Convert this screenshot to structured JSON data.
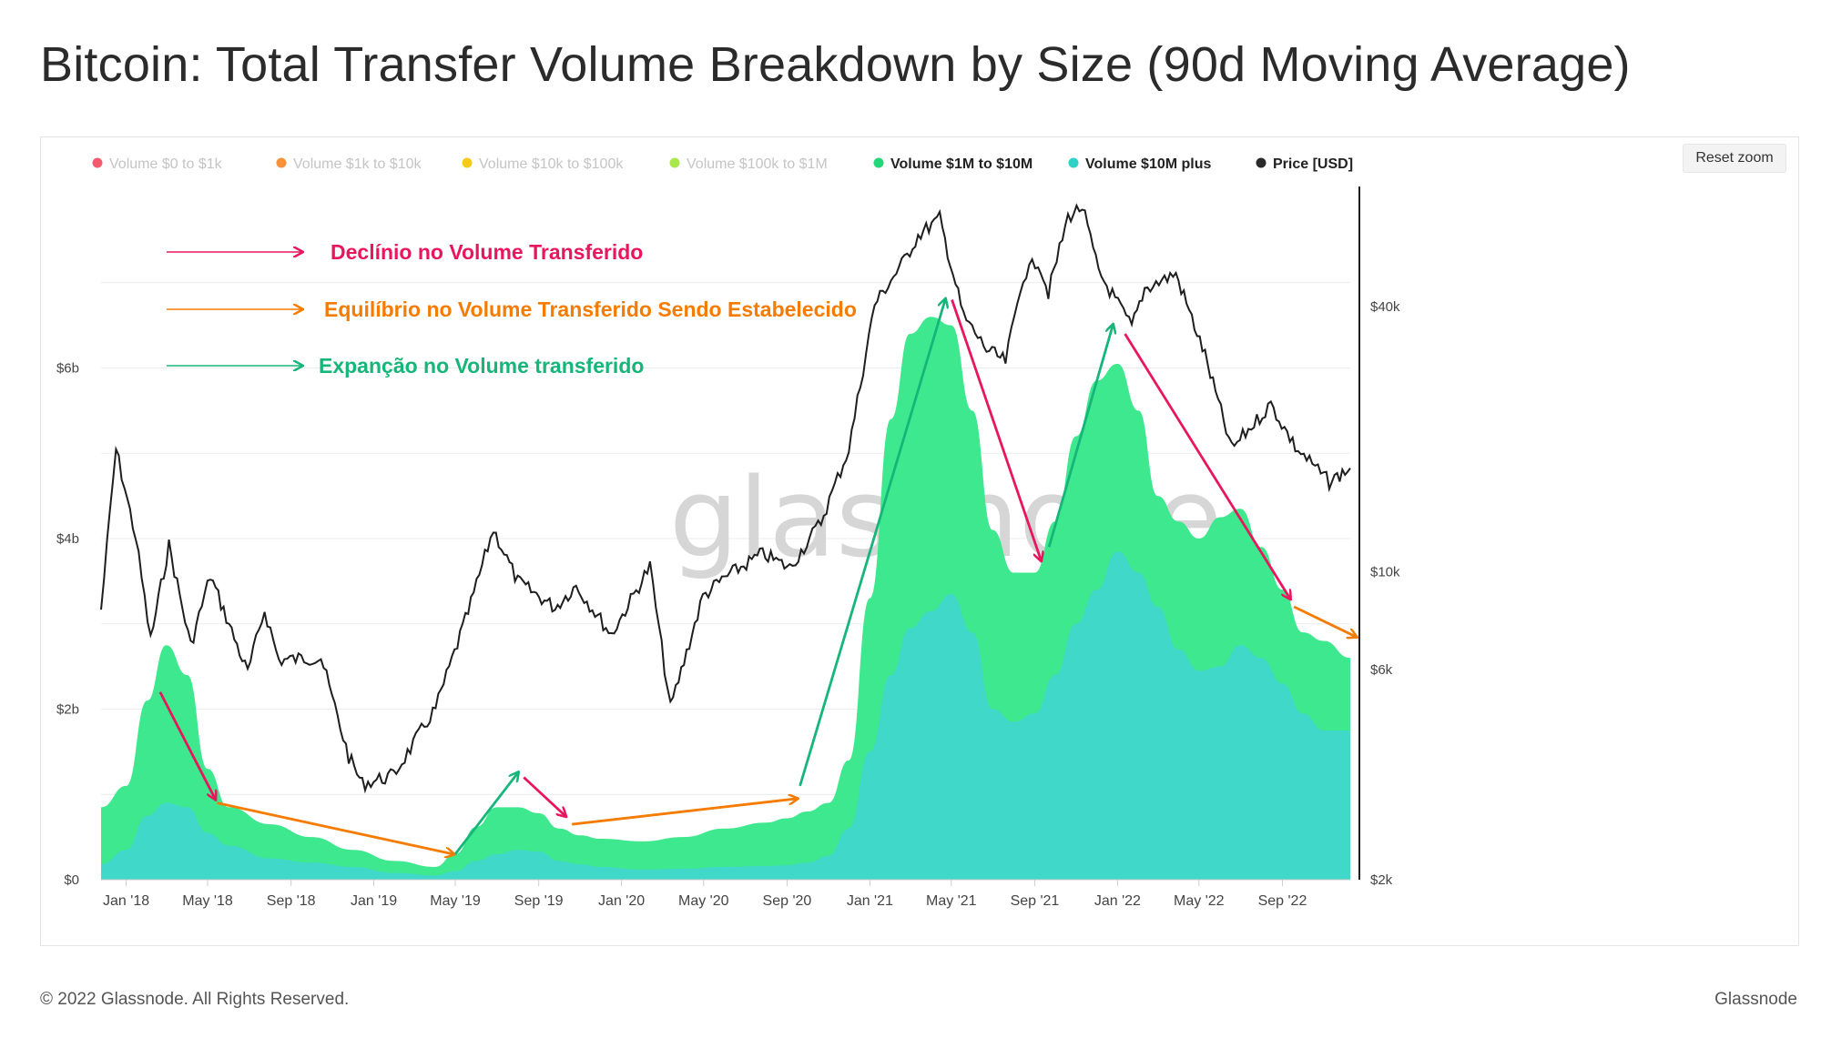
{
  "title": "Bitcoin: Total Transfer Volume Breakdown by Size (90d Moving Average)",
  "reset_zoom_label": "Reset zoom",
  "watermark": "glassnode",
  "footer": {
    "copyright": "© 2022 Glassnode. All Rights Reserved.",
    "brand": "Glassnode"
  },
  "legend": [
    {
      "label": "Volume $0 to $1k",
      "color": "#f35b6f",
      "active": false
    },
    {
      "label": "Volume $1k to $10k",
      "color": "#f7923a",
      "active": false
    },
    {
      "label": "Volume $10k to $100k",
      "color": "#f5cb17",
      "active": false
    },
    {
      "label": "Volume $100k to $1M",
      "color": "#a9e84a",
      "active": false
    },
    {
      "label": "Volume $1M to $10M",
      "color": "#22d67a",
      "active": true
    },
    {
      "label": "Volume $10M plus",
      "color": "#2fd0c5",
      "active": true
    },
    {
      "label": "Price [USD]",
      "color": "#2a2a2a",
      "active": true
    }
  ],
  "annotations": [
    {
      "text": "Declínio no Volume Transferido",
      "color": "#e8175d"
    },
    {
      "text": "Equilíbrio no Volume Transferido Sendo Estabelecido",
      "color": "#f57c00"
    },
    {
      "text": "Expanção no Volume transferido",
      "color": "#16b57a"
    }
  ],
  "colors": {
    "decline": "#e8175d",
    "equilibrium": "#f57c00",
    "expansion": "#16b57a",
    "area_1m_10m": "#3ee88e",
    "area_10m_plus": "#40d8c8",
    "price_line": "#1e1e1e",
    "grid": "#ececec"
  },
  "chart_data": {
    "type": "area",
    "x_ticks": [
      "Jan '18",
      "May '18",
      "Sep '18",
      "Jan '19",
      "May '19",
      "Sep '19",
      "Jan '20",
      "May '20",
      "Sep '20",
      "Jan '21",
      "May '21",
      "Sep '21",
      "Jan '22",
      "May '22",
      "Sep '22"
    ],
    "y_left_ticks": [
      "$0",
      "$2b",
      "$4b",
      "$6b"
    ],
    "y_left_range": [
      0,
      8
    ],
    "y_right_ticks": [
      "$2k",
      "$6k",
      "$10k",
      "$40k"
    ],
    "y_right_values": [
      2000,
      6000,
      10000,
      40000
    ],
    "y_right_scale": "log",
    "x_range": [
      "2017-11-25",
      "2022-12-10"
    ],
    "legend_position": "top",
    "series": [
      {
        "name": "Volume $10M plus",
        "axis": "left",
        "unit": "billions USD",
        "x": [
          "2017-11-25",
          "2018-01-01",
          "2018-02-01",
          "2018-03-01",
          "2018-04-01",
          "2018-05-01",
          "2018-06-01",
          "2018-08-01",
          "2018-10-01",
          "2018-12-01",
          "2019-02-01",
          "2019-04-01",
          "2019-05-01",
          "2019-06-01",
          "2019-07-01",
          "2019-08-01",
          "2019-09-01",
          "2019-10-01",
          "2019-11-01",
          "2019-12-01",
          "2020-02-01",
          "2020-04-01",
          "2020-06-01",
          "2020-08-01",
          "2020-09-01",
          "2020-10-01",
          "2020-11-01",
          "2020-12-01",
          "2021-01-01",
          "2021-02-01",
          "2021-03-01",
          "2021-04-01",
          "2021-05-01",
          "2021-06-01",
          "2021-07-01",
          "2021-08-01",
          "2021-09-01",
          "2021-10-01",
          "2021-11-01",
          "2021-12-01",
          "2022-01-01",
          "2022-02-01",
          "2022-03-01",
          "2022-04-01",
          "2022-05-01",
          "2022-06-01",
          "2022-07-01",
          "2022-08-01",
          "2022-09-01",
          "2022-10-01",
          "2022-11-01",
          "2022-12-10"
        ],
        "values": [
          0.18,
          0.35,
          0.75,
          0.9,
          0.85,
          0.55,
          0.4,
          0.25,
          0.2,
          0.15,
          0.08,
          0.05,
          0.1,
          0.22,
          0.3,
          0.35,
          0.33,
          0.22,
          0.18,
          0.15,
          0.12,
          0.13,
          0.15,
          0.16,
          0.17,
          0.2,
          0.28,
          0.6,
          1.5,
          2.4,
          2.95,
          3.15,
          3.35,
          2.9,
          2.0,
          1.85,
          1.95,
          2.4,
          3.0,
          3.4,
          3.85,
          3.6,
          3.2,
          2.7,
          2.45,
          2.5,
          2.75,
          2.6,
          2.3,
          1.95,
          1.75,
          1.75
        ]
      },
      {
        "name": "Volume $1M to $10M",
        "axis": "left",
        "unit": "billions USD (stacked total shown)",
        "x": [
          "2017-11-25",
          "2018-01-01",
          "2018-02-01",
          "2018-03-01",
          "2018-04-01",
          "2018-05-01",
          "2018-06-01",
          "2018-08-01",
          "2018-10-01",
          "2018-12-01",
          "2019-02-01",
          "2019-04-01",
          "2019-05-01",
          "2019-06-01",
          "2019-07-01",
          "2019-08-01",
          "2019-09-01",
          "2019-10-01",
          "2019-11-01",
          "2019-12-01",
          "2020-02-01",
          "2020-04-01",
          "2020-06-01",
          "2020-08-01",
          "2020-09-01",
          "2020-10-01",
          "2020-11-01",
          "2020-12-01",
          "2021-01-01",
          "2021-02-01",
          "2021-03-01",
          "2021-04-01",
          "2021-05-01",
          "2021-06-01",
          "2021-07-01",
          "2021-08-01",
          "2021-09-01",
          "2021-10-01",
          "2021-11-01",
          "2021-12-01",
          "2022-01-01",
          "2022-02-01",
          "2022-03-01",
          "2022-04-01",
          "2022-05-01",
          "2022-06-01",
          "2022-07-01",
          "2022-08-01",
          "2022-09-01",
          "2022-10-01",
          "2022-11-01",
          "2022-12-10"
        ],
        "values": [
          0.85,
          1.1,
          2.1,
          2.75,
          2.4,
          1.3,
          0.85,
          0.65,
          0.5,
          0.35,
          0.22,
          0.15,
          0.3,
          0.62,
          0.85,
          0.85,
          0.78,
          0.6,
          0.52,
          0.48,
          0.45,
          0.5,
          0.6,
          0.67,
          0.72,
          0.8,
          0.9,
          1.4,
          3.3,
          5.4,
          6.4,
          6.6,
          6.5,
          5.5,
          4.1,
          3.6,
          3.6,
          4.2,
          5.2,
          5.85,
          6.05,
          5.5,
          4.5,
          4.2,
          4.0,
          4.25,
          4.35,
          3.9,
          3.4,
          2.9,
          2.8,
          2.6
        ]
      },
      {
        "name": "Price [USD]",
        "axis": "right",
        "unit": "USD",
        "x": [
          "2017-11-25",
          "2017-12-17",
          "2018-01-15",
          "2018-02-06",
          "2018-03-05",
          "2018-04-06",
          "2018-05-05",
          "2018-06-29",
          "2018-07-24",
          "2018-08-14",
          "2018-10-15",
          "2018-11-25",
          "2018-12-15",
          "2019-01-30",
          "2019-04-02",
          "2019-05-20",
          "2019-06-26",
          "2019-08-01",
          "2019-09-25",
          "2019-10-26",
          "2019-12-17",
          "2020-02-12",
          "2020-03-13",
          "2020-04-30",
          "2020-06-01",
          "2020-07-27",
          "2020-09-05",
          "2020-10-21",
          "2020-12-01",
          "2021-01-08",
          "2021-02-21",
          "2021-03-13",
          "2021-04-14",
          "2021-05-19",
          "2021-06-22",
          "2021-07-20",
          "2021-08-15",
          "2021-09-06",
          "2021-09-21",
          "2021-10-20",
          "2021-11-10",
          "2021-12-04",
          "2022-01-22",
          "2022-02-10",
          "2022-03-28",
          "2022-05-10",
          "2022-06-18",
          "2022-08-15",
          "2022-09-20",
          "2022-11-09",
          "2022-12-10"
        ],
        "values": [
          8200,
          19000,
          12000,
          7000,
          11500,
          6800,
          9800,
          5900,
          8200,
          6300,
          6400,
          3800,
          3300,
          3450,
          4900,
          8100,
          12500,
          9500,
          8300,
          9300,
          7200,
          10300,
          4900,
          8800,
          9700,
          11000,
          10200,
          13000,
          19000,
          40500,
          51000,
          58000,
          63500,
          38000,
          32000,
          30000,
          47000,
          51000,
          43000,
          64000,
          67500,
          48000,
          36000,
          44000,
          47500,
          31000,
          19000,
          24000,
          19200,
          16000,
          17200
        ]
      }
    ]
  }
}
